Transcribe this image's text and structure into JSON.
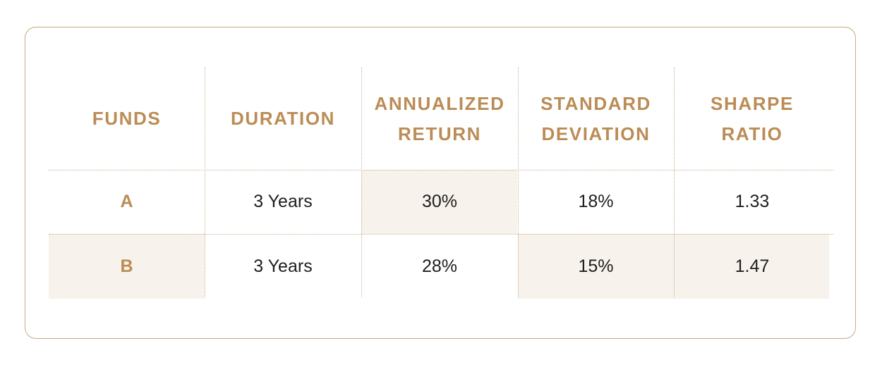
{
  "table": {
    "headers": [
      [
        "FUNDS"
      ],
      [
        "DURATION"
      ],
      [
        "ANNUALIZED",
        "RETURN"
      ],
      [
        "STANDARD",
        "DEVIATION"
      ],
      [
        "SHARPE",
        "RATIO"
      ]
    ],
    "rows": [
      {
        "fund": "A",
        "duration": "3 Years",
        "annualized_return": "30%",
        "standard_deviation": "18%",
        "sharpe_ratio": "1.33"
      },
      {
        "fund": "B",
        "duration": "3 Years",
        "annualized_return": "28%",
        "standard_deviation": "15%",
        "sharpe_ratio": "1.47"
      }
    ],
    "colors": {
      "accent": "#bb8c55",
      "border": "#c9a97a",
      "highlight": "#f7f2ec",
      "text": "#1f1f1f"
    }
  }
}
